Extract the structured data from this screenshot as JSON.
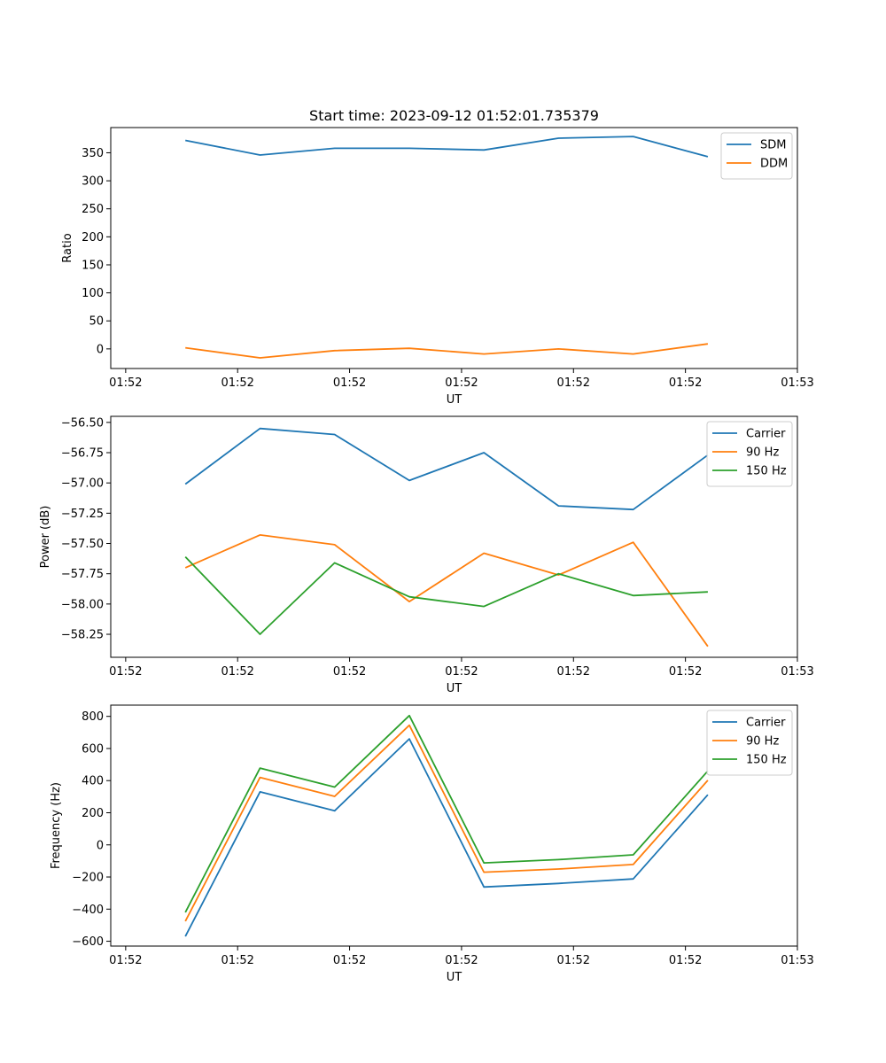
{
  "chart_data": [
    {
      "type": "line",
      "title": "Start time: 2023-09-12 01:52:01.735379",
      "xlabel": "UT",
      "ylabel": "Ratio",
      "xlim": [
        0,
        9.2
      ],
      "ylim": [
        -35,
        395
      ],
      "x_ticks": [
        {
          "v": 0.2,
          "label": "01:52"
        },
        {
          "v": 1.7,
          "label": "01:52"
        },
        {
          "v": 3.2,
          "label": "01:52"
        },
        {
          "v": 4.7,
          "label": "01:52"
        },
        {
          "v": 6.2,
          "label": "01:52"
        },
        {
          "v": 7.7,
          "label": "01:52"
        },
        {
          "v": 9.2,
          "label": "01:53"
        }
      ],
      "y_ticks": [
        0,
        50,
        100,
        150,
        200,
        250,
        300,
        350
      ],
      "y_tick_labels": [
        "0",
        "50",
        "100",
        "150",
        "200",
        "250",
        "300",
        "350"
      ],
      "legend": "top-right",
      "grid": false,
      "x": [
        1,
        2,
        3,
        4,
        5,
        6,
        7,
        8
      ],
      "series": [
        {
          "name": "SDM",
          "color": "#1f77b4",
          "values": [
            372,
            346,
            358,
            358,
            355,
            376,
            379,
            343
          ]
        },
        {
          "name": "DDM",
          "color": "#ff7f0e",
          "values": [
            2,
            -16,
            -3,
            1,
            -9,
            0,
            -9,
            9
          ]
        }
      ]
    },
    {
      "type": "line",
      "title": "",
      "xlabel": "UT",
      "ylabel": "Power (dB)",
      "xlim": [
        0,
        9.2
      ],
      "ylim": [
        -58.44,
        -56.45
      ],
      "x_ticks": [
        {
          "v": 0.2,
          "label": "01:52"
        },
        {
          "v": 1.7,
          "label": "01:52"
        },
        {
          "v": 3.2,
          "label": "01:52"
        },
        {
          "v": 4.7,
          "label": "01:52"
        },
        {
          "v": 6.2,
          "label": "01:52"
        },
        {
          "v": 7.7,
          "label": "01:52"
        },
        {
          "v": 9.2,
          "label": "01:53"
        }
      ],
      "y_ticks": [
        -58.25,
        -58.0,
        -57.75,
        -57.5,
        -57.25,
        -57.0,
        -56.75,
        -56.5
      ],
      "y_tick_labels": [
        "−58.25",
        "−58.00",
        "−57.75",
        "−57.50",
        "−57.25",
        "−57.00",
        "−56.75",
        "−56.50"
      ],
      "legend": "top-right",
      "grid": false,
      "x": [
        1,
        2,
        3,
        4,
        5,
        6,
        7,
        8
      ],
      "series": [
        {
          "name": "Carrier",
          "color": "#1f77b4",
          "values": [
            -57.01,
            -56.55,
            -56.6,
            -56.98,
            -56.75,
            -57.19,
            -57.22,
            -56.77
          ]
        },
        {
          "name": "90 Hz",
          "color": "#ff7f0e",
          "values": [
            -57.7,
            -57.43,
            -57.51,
            -57.98,
            -57.58,
            -57.76,
            -57.49,
            -58.35
          ]
        },
        {
          "name": "150 Hz",
          "color": "#2ca02c",
          "values": [
            -57.61,
            -58.25,
            -57.66,
            -57.94,
            -58.02,
            -57.75,
            -57.93,
            -57.9
          ]
        }
      ]
    },
    {
      "type": "line",
      "title": "",
      "xlabel": "UT",
      "ylabel": "Frequency (Hz)",
      "xlim": [
        0,
        9.2
      ],
      "ylim": [
        -630,
        870
      ],
      "x_ticks": [
        {
          "v": 0.2,
          "label": "01:52"
        },
        {
          "v": 1.7,
          "label": "01:52"
        },
        {
          "v": 3.2,
          "label": "01:52"
        },
        {
          "v": 4.7,
          "label": "01:52"
        },
        {
          "v": 6.2,
          "label": "01:52"
        },
        {
          "v": 7.7,
          "label": "01:52"
        },
        {
          "v": 9.2,
          "label": "01:53"
        }
      ],
      "y_ticks": [
        -600,
        -400,
        -200,
        0,
        200,
        400,
        600,
        800
      ],
      "y_tick_labels": [
        "−600",
        "−400",
        "−200",
        "0",
        "200",
        "400",
        "600",
        "800"
      ],
      "legend": "top-right",
      "grid": false,
      "x": [
        1,
        2,
        3,
        4,
        5,
        6,
        7,
        8
      ],
      "series": [
        {
          "name": "Carrier",
          "color": "#1f77b4",
          "values": [
            -570,
            330,
            212,
            660,
            -262,
            -240,
            -212,
            312
          ]
        },
        {
          "name": "90 Hz",
          "color": "#ff7f0e",
          "values": [
            -475,
            420,
            302,
            745,
            -170,
            -150,
            -122,
            402
          ]
        },
        {
          "name": "150 Hz",
          "color": "#2ca02c",
          "values": [
            -420,
            478,
            360,
            805,
            -112,
            -92,
            -62,
            460
          ]
        }
      ]
    }
  ]
}
